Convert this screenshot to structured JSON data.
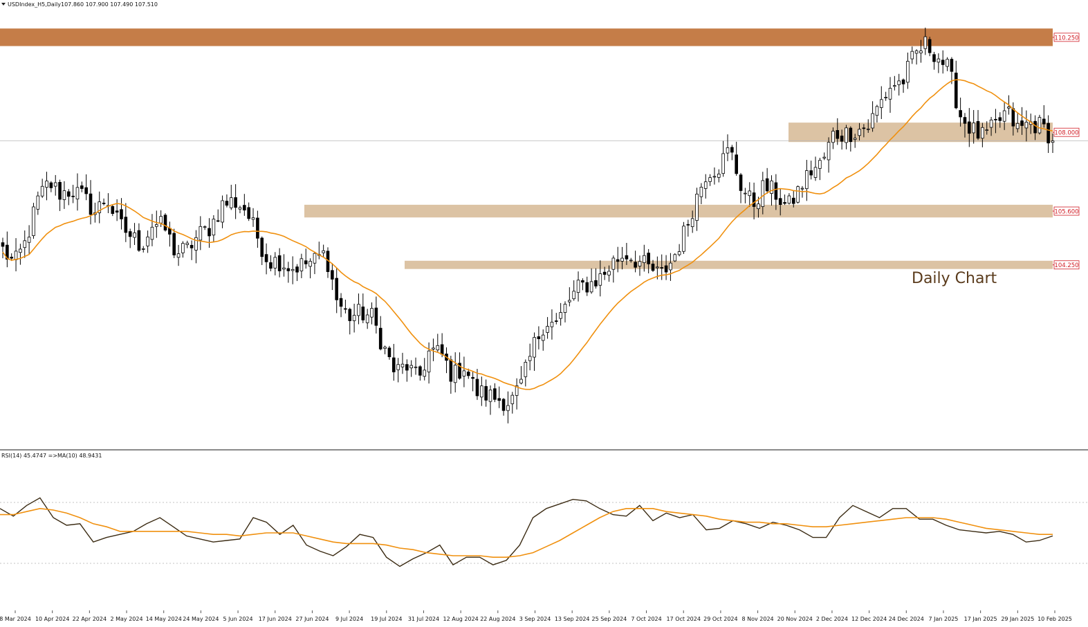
{
  "header": {
    "symbol_label": "USDIndex_H5,Daily",
    "ohlc": "107.860 107.900 107.490 107.510"
  },
  "annotation": "Daily Chart",
  "rsi_header": "RSI(14) 45.4747  =>MA(10) 48.9431",
  "colors": {
    "resistance_zone": "#c57d48",
    "zone": "#dcc3a4",
    "ma": "#f0900e",
    "rsi": "#3a2a12",
    "price_tag": "#d11b24",
    "annotation": "#5a3b1c"
  },
  "chart_data": [
    {
      "type": "candlestick",
      "title": "USDIndex_H5,Daily",
      "price_range": [
        99.7,
        110.95
      ],
      "zones": [
        {
          "low": 110.05,
          "high": 110.52,
          "label": "110.250"
        },
        {
          "low": 107.48,
          "high": 108.0,
          "label": "108.000"
        },
        {
          "low": 105.46,
          "high": 105.8,
          "label": "105.600"
        },
        {
          "low": 104.08,
          "high": 104.3,
          "label": "104.250"
        }
      ],
      "current_price": 107.51,
      "x_ticks": [
        "8 Mar 2024",
        "10 Apr 2024",
        "22 Apr 2024",
        "2 May 2024",
        "14 May 2024",
        "24 May 2024",
        "5 Jun 2024",
        "17 Jun 2024",
        "27 Jun 2024",
        "9 Jul 2024",
        "19 Jul 2024",
        "31 Jul 2024",
        "12 Aug 2024",
        "22 Aug 2024",
        "3 Sep 2024",
        "13 Sep 2024",
        "25 Sep 2024",
        "7 Oct 2024",
        "17 Oct 2024",
        "29 Oct 2024",
        "8 Nov 2024",
        "20 Nov 2024",
        "2 Dec 2024",
        "12 Dec 2024",
        "24 Dec 2024",
        "7 Jan 2025",
        "17 Jan 2025",
        "29 Jan 2025",
        "10 Feb 2025"
      ],
      "close_path": [
        104.6,
        104.2,
        104.8,
        105.9,
        106.4,
        106.1,
        106.2,
        106.0,
        105.6,
        106.0,
        105.3,
        105.0,
        104.7,
        105.3,
        105.2,
        104.5,
        104.6,
        105.0,
        105.2,
        105.8,
        105.9,
        105.7,
        105.0,
        104.3,
        104.3,
        104.1,
        104.2,
        104.3,
        104.5,
        103.2,
        102.8,
        102.9,
        102.8,
        102.0,
        101.3,
        101.5,
        101.1,
        101.9,
        101.8,
        101.2,
        101.5,
        100.8,
        100.7,
        100.6,
        100.5,
        101.0,
        102.0,
        102.7,
        102.6,
        103.2,
        103.6,
        103.7,
        103.9,
        104.3,
        104.5,
        104.3,
        104.1,
        103.9,
        104.3,
        105.0,
        105.9,
        106.7,
        106.8,
        107.3,
        106.3,
        105.8,
        106.3,
        106.1,
        105.7,
        106.2,
        106.7,
        106.9,
        107.7,
        107.7,
        107.8,
        107.9,
        108.5,
        109.0,
        109.1,
        109.8,
        110.1,
        109.8,
        109.4,
        108.2,
        107.8,
        107.6,
        107.9,
        108.3,
        107.8,
        108.0,
        107.9,
        107.6
      ],
      "ma_period": 20
    },
    {
      "type": "line",
      "title": "RSI(14) 45.4747  =>MA(10) 48.9431",
      "ylim": [
        0,
        100
      ],
      "levels": [
        70,
        30
      ],
      "series": [
        {
          "name": "RSI(14)",
          "values": [
            66,
            61,
            68,
            73,
            60,
            55,
            56,
            44,
            47,
            49,
            51,
            56,
            60,
            54,
            48,
            46,
            44,
            45,
            46,
            60,
            57,
            49,
            55,
            42,
            38,
            35,
            41,
            49,
            47,
            34,
            28,
            33,
            37,
            42,
            29,
            34,
            34,
            29,
            32,
            42,
            60,
            66,
            69,
            72,
            71,
            66,
            62,
            61,
            68,
            58,
            63,
            60,
            62,
            52,
            53,
            58,
            56,
            53,
            57,
            55,
            52,
            47,
            47,
            60,
            68,
            64,
            60,
            66,
            66,
            59,
            59,
            55,
            52,
            51,
            50,
            51,
            49,
            44,
            45,
            48
          ]
        },
        {
          "name": "MA(10)",
          "values": [
            62,
            62,
            64,
            66,
            65,
            63,
            60,
            56,
            54,
            51,
            51,
            51,
            51,
            51,
            51,
            50,
            49,
            49,
            48,
            49,
            50,
            50,
            50,
            48,
            46,
            44,
            43,
            43,
            43,
            42,
            40,
            39,
            37,
            36,
            35,
            35,
            35,
            34,
            34,
            35,
            37,
            41,
            45,
            50,
            55,
            60,
            64,
            66,
            66,
            66,
            64,
            63,
            62,
            61,
            59,
            58,
            57,
            57,
            56,
            56,
            55,
            54,
            54,
            55,
            56,
            57,
            58,
            59,
            60,
            60,
            60,
            59,
            57,
            55,
            53,
            52,
            51,
            50,
            49,
            49
          ]
        }
      ]
    }
  ]
}
